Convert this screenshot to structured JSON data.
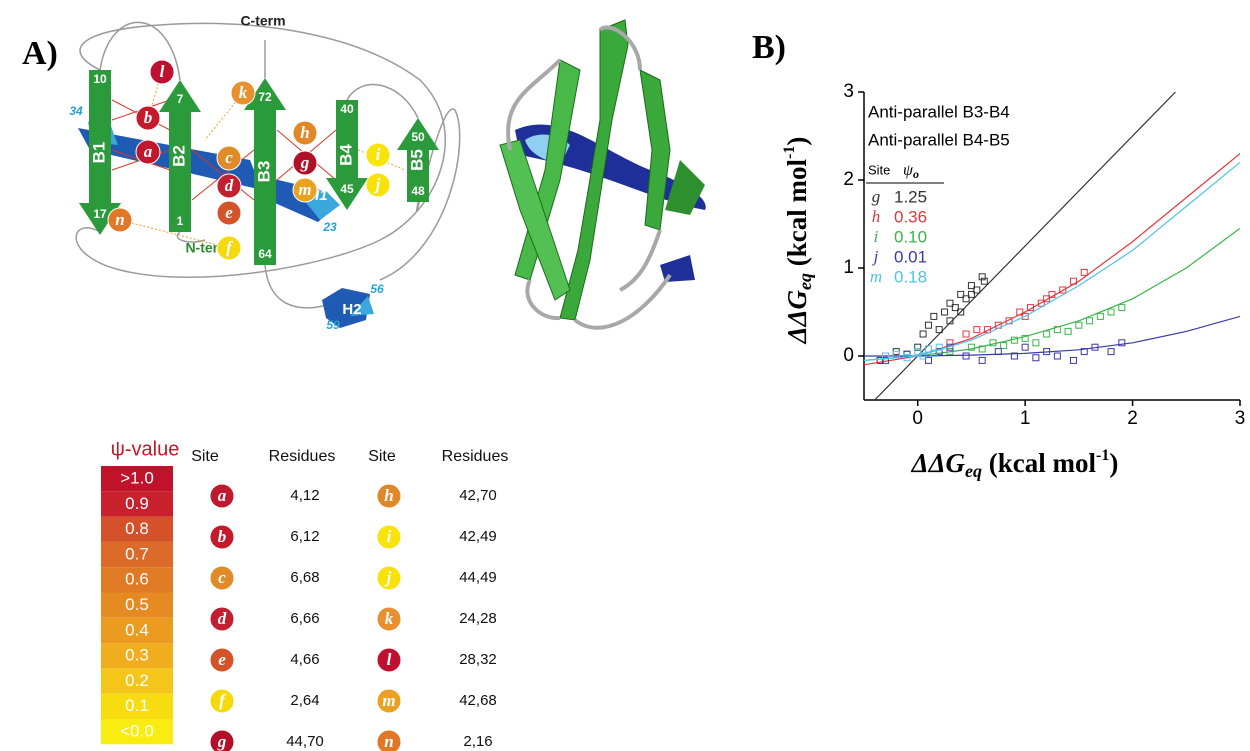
{
  "panel_labels": {
    "a": "A)",
    "b": "B)"
  },
  "diagram": {
    "c_term": "C-term",
    "n_term": "N-term",
    "strands": [
      {
        "name": "B1",
        "start": "10",
        "end": "17"
      },
      {
        "name": "B2",
        "start": "1",
        "end": "7"
      },
      {
        "name": "B3",
        "start": "64",
        "end": "72"
      },
      {
        "name": "B4",
        "start": "40",
        "end": "45"
      },
      {
        "name": "B5",
        "start": "48",
        "end": "50"
      }
    ],
    "helices": [
      {
        "name": "H1",
        "start": "34",
        "end": "23"
      },
      {
        "name": "H2",
        "start": "56",
        "end": "59"
      }
    ]
  },
  "psi_scale": {
    "title": "ψ-value",
    "levels": [
      {
        "label": ">1.0",
        "color": "#c0122a"
      },
      {
        "label": "0.9",
        "color": "#c8202c"
      },
      {
        "label": "0.8",
        "color": "#d4512a"
      },
      {
        "label": "0.7",
        "color": "#dc6a28"
      },
      {
        "label": "0.6",
        "color": "#e07a25"
      },
      {
        "label": "0.5",
        "color": "#e68a22"
      },
      {
        "label": "0.4",
        "color": "#eb9c20"
      },
      {
        "label": "0.3",
        "color": "#f0ae1e"
      },
      {
        "label": "0.2",
        "color": "#f5c61a"
      },
      {
        "label": "0.1",
        "color": "#f7dc10"
      },
      {
        "label": "<0.0",
        "color": "#f8ec10"
      }
    ]
  },
  "table": {
    "headers": [
      "Site",
      "Residues",
      "Site",
      "Residues"
    ],
    "sites": [
      {
        "letter": "a",
        "residues": "4,12",
        "color": "#c0182c"
      },
      {
        "letter": "b",
        "residues": "6,12",
        "color": "#c41a2c"
      },
      {
        "letter": "c",
        "residues": "6,68",
        "color": "#e08a28"
      },
      {
        "letter": "d",
        "residues": "6,66",
        "color": "#c02030"
      },
      {
        "letter": "e",
        "residues": "4,66",
        "color": "#d4542a"
      },
      {
        "letter": "f",
        "residues": "2,64",
        "color": "#f5d90a"
      },
      {
        "letter": "g",
        "residues": "44,70",
        "color": "#b01028"
      },
      {
        "letter": "h",
        "residues": "42,70",
        "color": "#e08828"
      },
      {
        "letter": "i",
        "residues": "42,49",
        "color": "#f8e40a"
      },
      {
        "letter": "j",
        "residues": "44,49",
        "color": "#f8e20a"
      },
      {
        "letter": "k",
        "residues": "24,28",
        "color": "#e89030"
      },
      {
        "letter": "l",
        "residues": "28,32",
        "color": "#c01030"
      },
      {
        "letter": "m",
        "residues": "42,68",
        "color": "#eaa020"
      },
      {
        "letter": "n",
        "residues": "2,16",
        "color": "#e07828"
      }
    ]
  },
  "chart_data": {
    "type": "scatter",
    "annotations": [
      "Anti-parallel B3-B4",
      "Anti-parallel B4-B5"
    ],
    "legend_headers": {
      "site": "Site",
      "psi": "ψ",
      "psi_sub": "o"
    },
    "x_label": {
      "main": "ΔΔG",
      "sub": "eq",
      "unit": " (kcal mol",
      "sup": "-1",
      "close": ")"
    },
    "y_label": {
      "main": "ΔΔG",
      "sub": "eq",
      "unit": "  (kcal mol",
      "sup": "-1",
      "close": ")"
    },
    "xlim": [
      -0.5,
      3
    ],
    "ylim": [
      -0.5,
      3
    ],
    "xticks": [
      0,
      1,
      2,
      3
    ],
    "yticks": [
      0,
      1,
      2,
      3
    ],
    "series": [
      {
        "name": "g",
        "psi_label": "1.25",
        "color": "#333333",
        "x": [
          -0.35,
          -0.2,
          -0.1,
          0,
          0.05,
          0.1,
          0.15,
          0.2,
          0.25,
          0.3,
          0.35,
          0.4,
          0.45,
          0.5,
          0.55,
          0.6,
          0.62,
          0.3,
          0.4,
          0.5
        ],
        "values": [
          -0.05,
          0.05,
          0.02,
          0.1,
          0.25,
          0.35,
          0.45,
          0.3,
          0.5,
          0.6,
          0.55,
          0.7,
          0.65,
          0.8,
          0.75,
          0.9,
          0.85,
          0.4,
          0.5,
          0.7
        ],
        "fit_x": [
          -0.4,
          2.4
        ],
        "fit_y": [
          -0.5,
          3
        ]
      },
      {
        "name": "h",
        "psi_label": "0.36",
        "color": "#e0393e",
        "x": [
          0.3,
          0.45,
          0.55,
          0.65,
          0.75,
          0.85,
          0.95,
          1.05,
          1.15,
          1.25,
          1.35,
          1.45,
          1.55,
          1.0,
          1.2
        ],
        "values": [
          0.15,
          0.25,
          0.3,
          0.3,
          0.35,
          0.4,
          0.5,
          0.55,
          0.6,
          0.7,
          0.75,
          0.85,
          0.95,
          0.45,
          0.65
        ],
        "fit_x": [
          -0.5,
          0,
          0.5,
          1,
          1.5,
          2,
          2.5,
          3
        ],
        "fit_y": [
          -0.1,
          0,
          0.2,
          0.5,
          0.85,
          1.3,
          1.8,
          2.3
        ]
      },
      {
        "name": "i",
        "psi_label": "0.10",
        "color": "#3cb44b",
        "x": [
          0.3,
          0.5,
          0.6,
          0.7,
          0.8,
          0.9,
          1.0,
          1.1,
          1.2,
          1.3,
          1.4,
          1.5,
          1.6,
          1.7,
          1.8,
          1.9
        ],
        "values": [
          0.05,
          0.1,
          0.08,
          0.15,
          0.12,
          0.18,
          0.2,
          0.15,
          0.25,
          0.3,
          0.28,
          0.35,
          0.4,
          0.45,
          0.5,
          0.55
        ],
        "fit_x": [
          -0.5,
          0,
          0.5,
          1,
          1.5,
          2,
          2.5,
          3
        ],
        "fit_y": [
          -0.05,
          0,
          0.08,
          0.22,
          0.4,
          0.65,
          1.0,
          1.45
        ]
      },
      {
        "name": "j",
        "psi_label": "0.01",
        "color": "#3a3aa8",
        "x": [
          -0.3,
          -0.1,
          0.1,
          0.2,
          0.3,
          0.45,
          0.6,
          0.75,
          0.9,
          1.0,
          1.1,
          1.2,
          1.3,
          1.45,
          1.55,
          1.65,
          1.8,
          1.9
        ],
        "values": [
          -0.05,
          0.02,
          -0.05,
          0.05,
          0.1,
          0.0,
          -0.05,
          0.05,
          0.0,
          0.1,
          -0.02,
          0.05,
          0.0,
          -0.05,
          0.05,
          0.1,
          0.05,
          0.15
        ],
        "fit_x": [
          -0.5,
          0,
          0.5,
          1,
          1.5,
          2,
          2.5,
          3
        ],
        "fit_y": [
          0,
          0,
          0.01,
          0.03,
          0.07,
          0.15,
          0.28,
          0.45
        ]
      },
      {
        "name": "m",
        "psi_label": "0.18",
        "color": "#4ec3e8",
        "x": [
          -0.3,
          -0.2,
          -0.1,
          0,
          0.05,
          0.1,
          0.15,
          0.2
        ],
        "values": [
          0.0,
          0.02,
          -0.02,
          0.05,
          0.0,
          0.08,
          0.03,
          0.1
        ],
        "fit_x": [
          -0.5,
          0,
          0.5,
          1,
          1.5,
          2,
          2.5,
          3
        ],
        "fit_y": [
          -0.05,
          0,
          0.18,
          0.45,
          0.8,
          1.2,
          1.7,
          2.2
        ]
      }
    ]
  }
}
